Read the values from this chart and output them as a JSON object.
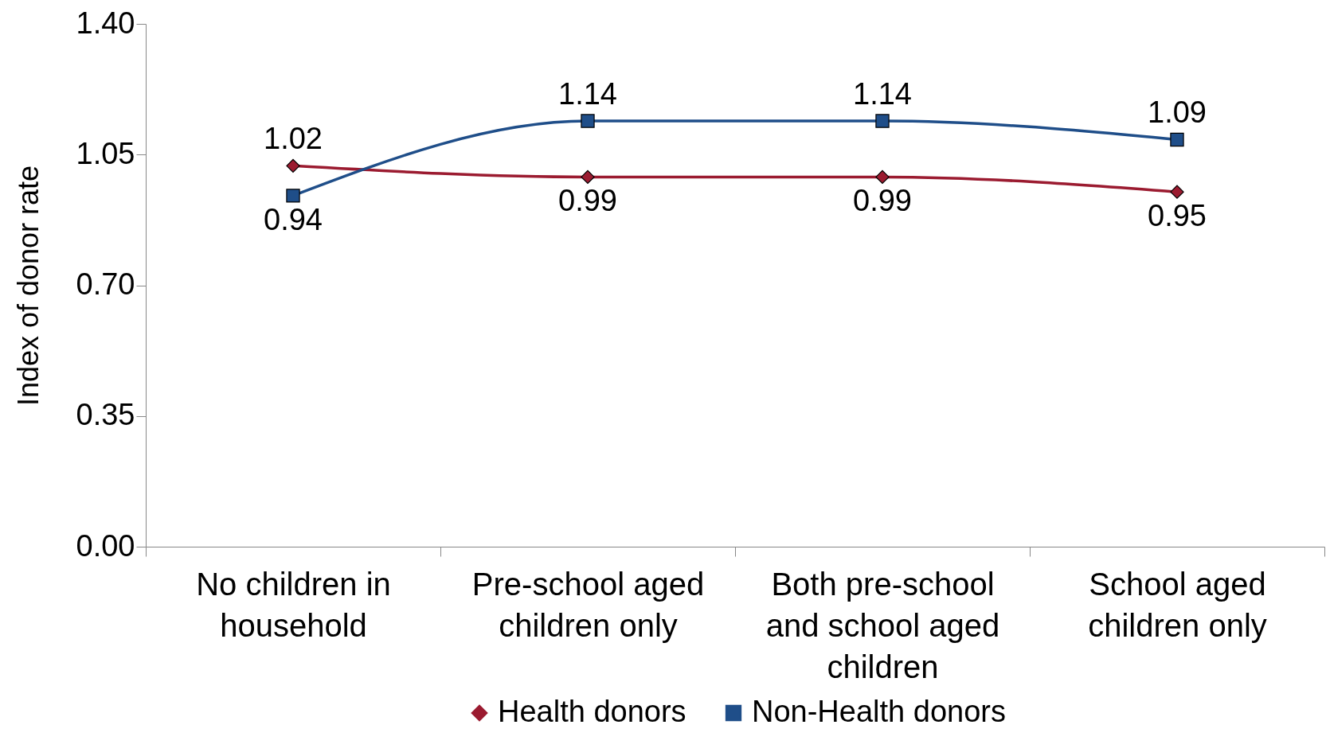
{
  "chart_data": {
    "type": "line",
    "ylabel": "Index of donor rate",
    "categories": [
      "No children in household",
      "Pre-school aged children only",
      "Both pre-school and school aged children",
      "School aged children only"
    ],
    "series": [
      {
        "name": "Health donors",
        "color": "#9b1b30",
        "marker": "diamond",
        "values": [
          1.02,
          0.99,
          0.99,
          0.95
        ]
      },
      {
        "name": "Non-Health donors",
        "color": "#1f4e89",
        "marker": "square",
        "values": [
          0.94,
          1.14,
          1.14,
          1.09
        ]
      }
    ],
    "ylim": [
      0,
      1.4
    ],
    "yticks": [
      {
        "value": 0,
        "label": "0.00"
      },
      {
        "value": 0.35,
        "label": "0.35"
      },
      {
        "value": 0.7,
        "label": "0.70"
      },
      {
        "value": 1.05,
        "label": "1.05"
      },
      {
        "value": 1.4,
        "label": "1.40"
      }
    ],
    "data_labels": true,
    "legend": "bottom",
    "grid": false,
    "line_style": "solid"
  }
}
